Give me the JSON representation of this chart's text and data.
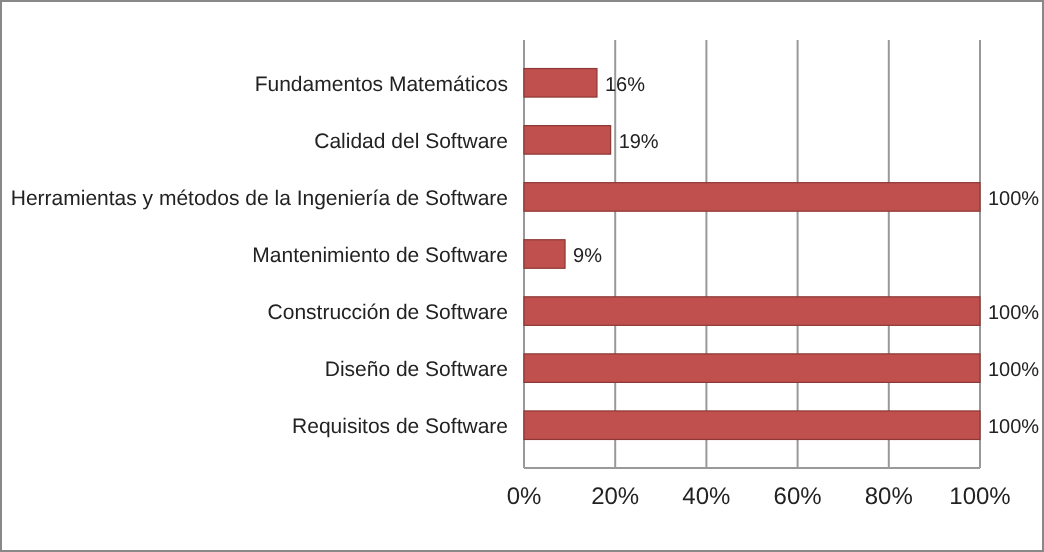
{
  "chart_data": {
    "type": "bar",
    "orientation": "horizontal",
    "categories": [
      "Fundamentos Matemáticos",
      "Calidad del Software",
      "Herramientas y métodos de la Ingeniería de Software",
      "Mantenimiento de Software",
      "Construcción de Software",
      "Diseño de Software",
      "Requisitos de Software"
    ],
    "values": [
      16,
      19,
      100,
      9,
      100,
      100,
      100
    ],
    "value_labels": [
      "16%",
      "19%",
      "100%",
      "9%",
      "100%",
      "100%",
      "100%"
    ],
    "color": "#c0504d",
    "xlim": [
      0,
      100
    ],
    "xticks": [
      {
        "value": 0,
        "label": "0%"
      },
      {
        "value": 20,
        "label": "20%"
      },
      {
        "value": 40,
        "label": "40%"
      },
      {
        "value": 60,
        "label": "60%"
      },
      {
        "value": 80,
        "label": "80%"
      },
      {
        "value": 100,
        "label": "100%"
      }
    ],
    "grid": "x"
  }
}
